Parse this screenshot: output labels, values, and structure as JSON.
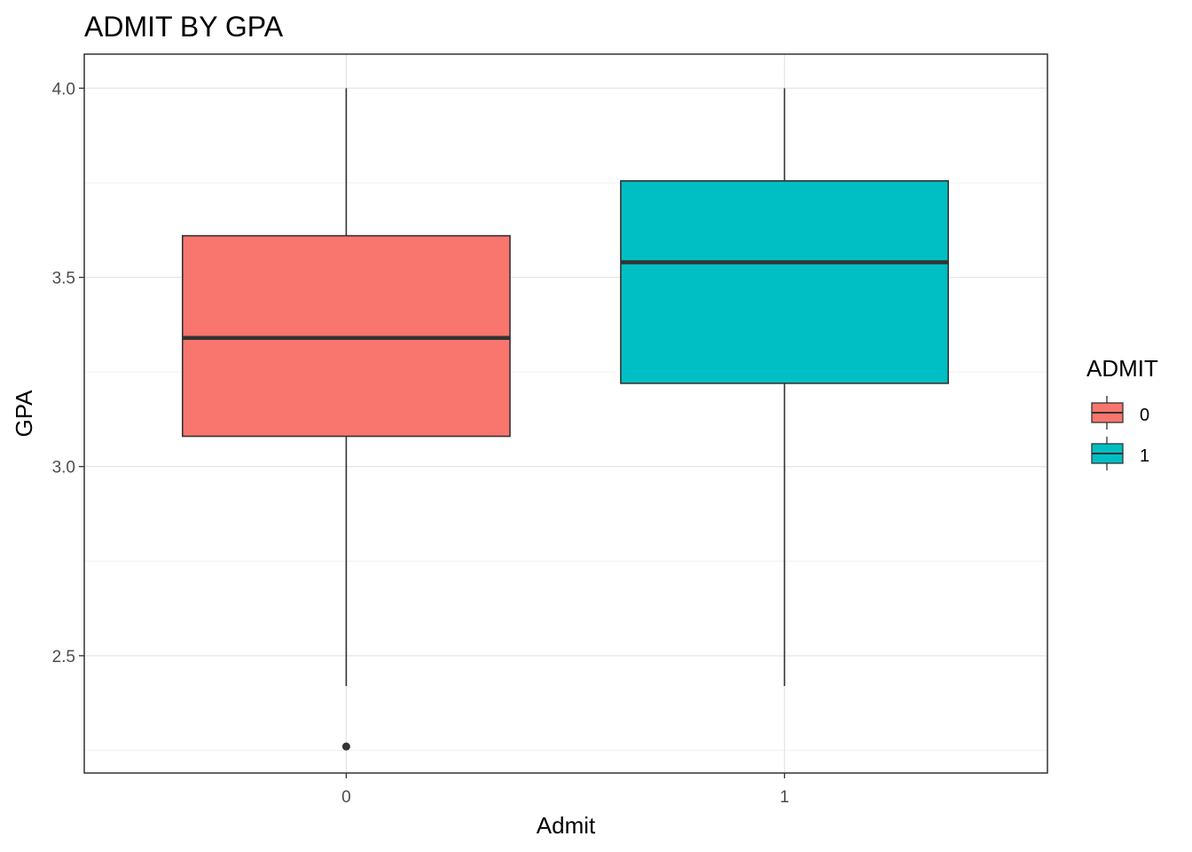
{
  "chart_data": {
    "type": "boxplot",
    "title": "ADMIT BY GPA",
    "xlabel": "Admit",
    "ylabel": "GPA",
    "categories": [
      "0",
      "1"
    ],
    "yticks": [
      "2.5",
      "3.0",
      "3.5",
      "4.0"
    ],
    "ytick_values": [
      2.5,
      3.0,
      3.5,
      4.0
    ],
    "ylim": [
      2.19,
      4.09
    ],
    "grid": true,
    "legend": {
      "title": "ADMIT",
      "position": "right",
      "entries": [
        "0",
        "1"
      ]
    },
    "series": [
      {
        "category": "0",
        "color": "#F8766D",
        "min": 2.42,
        "q1": 3.08,
        "median": 3.34,
        "q3": 3.61,
        "max": 4.0,
        "outliers": [
          2.26
        ]
      },
      {
        "category": "1",
        "color": "#00BFC4",
        "min": 2.42,
        "q1": 3.22,
        "median": 3.54,
        "q3": 3.755,
        "max": 4.0,
        "outliers": []
      }
    ]
  }
}
